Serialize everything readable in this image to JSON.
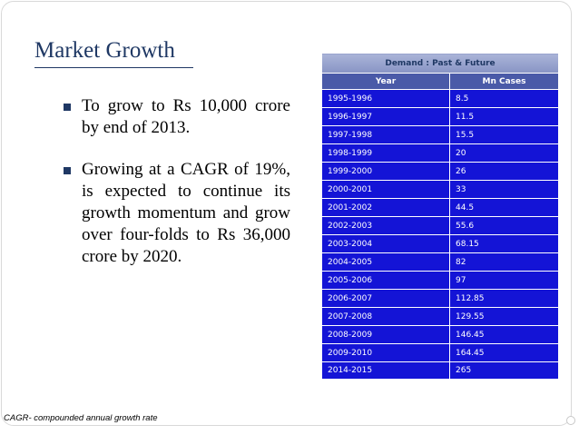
{
  "slide": {
    "title": "Market Growth",
    "bullets": [
      "To grow to Rs 10,000 crore by end of 2013.",
      "Growing at a CAGR of 19%, is expected to continue its growth momentum and grow over four-folds to Rs 36,000 crore by 2020."
    ],
    "footnote": "CAGR- compounded annual growth rate"
  },
  "table": {
    "caption": "Demand : Past & Future",
    "headers": [
      "Year",
      "Mn Cases"
    ],
    "rows": [
      [
        "1995-1996",
        "8.5"
      ],
      [
        "1996-1997",
        "11.5"
      ],
      [
        "1997-1998",
        "15.5"
      ],
      [
        "1998-1999",
        "20"
      ],
      [
        "1999-2000",
        "26"
      ],
      [
        "2000-2001",
        "33"
      ],
      [
        "2001-2002",
        "44.5"
      ],
      [
        "2002-2003",
        "55.6"
      ],
      [
        "2003-2004",
        "68.15"
      ],
      [
        "2004-2005",
        "82"
      ],
      [
        "2005-2006",
        "97"
      ],
      [
        "2006-2007",
        "112.85"
      ],
      [
        "2007-2008",
        "129.55"
      ],
      [
        "2008-2009",
        "146.45"
      ],
      [
        "2009-2010",
        "164.45"
      ],
      [
        "2014-2015",
        "265"
      ]
    ]
  },
  "colors": {
    "title": "#1f3864",
    "cell_blue": "#1414d6",
    "header_blue": "#4a5aa8"
  }
}
